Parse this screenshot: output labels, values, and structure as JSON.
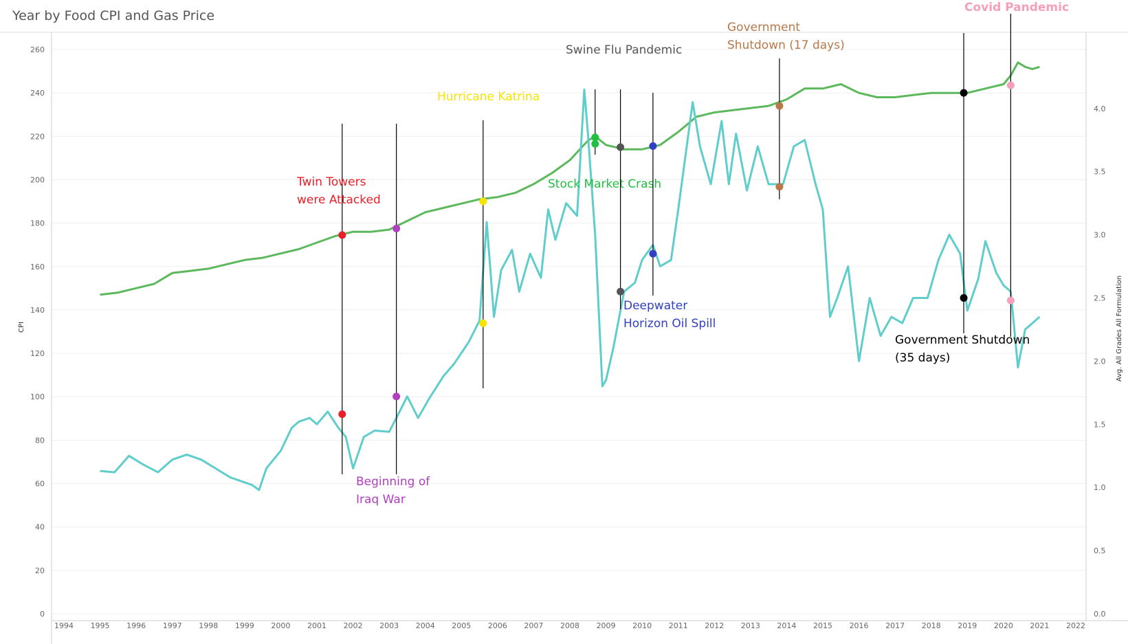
{
  "chart_data": {
    "type": "line",
    "title": "Year by Food CPI and Gas Price",
    "ylabel": "CPI",
    "y2label": "Avg. All Grades All Formulation",
    "ylim": [
      0,
      260
    ],
    "y2lim": [
      0,
      4.2
    ],
    "yticks": [
      0,
      20,
      40,
      60,
      80,
      100,
      120,
      140,
      160,
      180,
      200,
      220,
      240,
      260
    ],
    "y2ticks": [
      "0.0",
      "0.5",
      "1.0",
      "1.5",
      "2.0",
      "2.5",
      "3.0",
      "3.5",
      "4.0"
    ],
    "xticks": [
      "1994",
      "1995",
      "1996",
      "1997",
      "1998",
      "1999",
      "2000",
      "2001",
      "2002",
      "2003",
      "2004",
      "2005",
      "2006",
      "2007",
      "2008",
      "2009",
      "2010",
      "2011",
      "2012",
      "2013",
      "2014",
      "2015",
      "2016",
      "2017",
      "2018",
      "2019",
      "2020",
      "2021",
      "2022"
    ],
    "grid": true,
    "series": [
      {
        "color": "#5cb85c",
        "axis": "left",
        "x": [
          1995.0,
          1995.5,
          1996.0,
          1996.5,
          1997.0,
          1997.5,
          1998.0,
          1998.5,
          1999.0,
          1999.5,
          2000.0,
          2000.5,
          2001.0,
          2001.5,
          2002.0,
          2002.5,
          2003.0,
          2003.5,
          2004.0,
          2004.5,
          2005.0,
          2005.5,
          2006.0,
          2006.5,
          2007.0,
          2007.5,
          2008.0,
          2008.5,
          2008.7,
          2009.0,
          2009.5,
          2010.0,
          2010.5,
          2011.0,
          2011.5,
          2012.0,
          2012.5,
          2013.0,
          2013.5,
          2014.0,
          2014.5,
          2015.0,
          2015.5,
          2016.0,
          2016.5,
          2017.0,
          2017.5,
          2018.0,
          2018.5,
          2019.0,
          2019.5,
          2020.0,
          2020.2,
          2020.4,
          2020.6,
          2020.8,
          2021.0
        ],
        "values": [
          147,
          148,
          150,
          152,
          157,
          158,
          159,
          161,
          163,
          164,
          166,
          168,
          171,
          174,
          176,
          176,
          177,
          181,
          185,
          187,
          189,
          191,
          192,
          194,
          198,
          203,
          209,
          218,
          220,
          216,
          214,
          214,
          216,
          222,
          229,
          231,
          232,
          233,
          234,
          237,
          242,
          242,
          244,
          240,
          238,
          238,
          239,
          240,
          240,
          240,
          242,
          244,
          248,
          254,
          252,
          251,
          252
        ]
      },
      {
        "color": "#5fcdcb",
        "axis": "right",
        "x": [
          1995.0,
          1995.4,
          1995.8,
          1996.2,
          1996.6,
          1997.0,
          1997.4,
          1997.8,
          1998.2,
          1998.6,
          1999.0,
          1999.2,
          1999.4,
          1999.6,
          2000.0,
          2000.3,
          2000.5,
          2000.8,
          2001.0,
          2001.3,
          2001.6,
          2001.8,
          2002.0,
          2002.3,
          2002.6,
          2003.0,
          2003.2,
          2003.5,
          2003.8,
          2004.1,
          2004.5,
          2004.8,
          2005.2,
          2005.5,
          2005.7,
          2005.9,
          2006.1,
          2006.4,
          2006.6,
          2006.9,
          2007.2,
          2007.4,
          2007.6,
          2007.9,
          2008.2,
          2008.4,
          2008.5,
          2008.7,
          2008.9,
          2009.0,
          2009.2,
          2009.5,
          2009.8,
          2010.0,
          2010.3,
          2010.5,
          2010.8,
          2011.0,
          2011.4,
          2011.6,
          2011.9,
          2012.2,
          2012.4,
          2012.6,
          2012.9,
          2013.2,
          2013.5,
          2013.9,
          2014.2,
          2014.5,
          2014.8,
          2015.0,
          2015.2,
          2015.4,
          2015.7,
          2016.0,
          2016.3,
          2016.6,
          2016.9,
          2017.2,
          2017.5,
          2017.9,
          2018.2,
          2018.5,
          2018.8,
          2019.0,
          2019.3,
          2019.5,
          2019.8,
          2020.0,
          2020.2,
          2020.4,
          2020.6,
          2020.8,
          2021.0
        ],
        "values": [
          1.13,
          1.12,
          1.25,
          1.18,
          1.12,
          1.22,
          1.26,
          1.22,
          1.15,
          1.08,
          1.04,
          1.02,
          0.98,
          1.15,
          1.29,
          1.47,
          1.52,
          1.55,
          1.5,
          1.6,
          1.47,
          1.4,
          1.15,
          1.4,
          1.45,
          1.44,
          1.55,
          1.72,
          1.55,
          1.7,
          1.88,
          1.98,
          2.15,
          2.32,
          3.1,
          2.35,
          2.72,
          2.88,
          2.55,
          2.85,
          2.66,
          3.2,
          2.96,
          3.25,
          3.15,
          4.15,
          3.8,
          3.0,
          1.8,
          1.85,
          2.1,
          2.55,
          2.62,
          2.8,
          2.92,
          2.75,
          2.8,
          3.2,
          4.05,
          3.7,
          3.4,
          3.9,
          3.4,
          3.8,
          3.35,
          3.7,
          3.4,
          3.4,
          3.7,
          3.75,
          3.4,
          3.2,
          2.35,
          2.5,
          2.75,
          2.0,
          2.5,
          2.2,
          2.35,
          2.3,
          2.5,
          2.5,
          2.8,
          3.0,
          2.85,
          2.4,
          2.65,
          2.95,
          2.7,
          2.6,
          2.55,
          1.95,
          2.25,
          2.3,
          2.35
        ]
      }
    ],
    "events": [
      {
        "label_lines": [
          "Twin Towers",
          "were Attacked"
        ],
        "color": "#e8202a",
        "x": 2001.7,
        "cpi": 174.5,
        "gas": 1.58
      },
      {
        "label_lines": [
          "Beginning of",
          "Iraq War"
        ],
        "color": "#b040c0",
        "x": 2003.2,
        "cpi": 177.5,
        "gas": 1.72
      },
      {
        "label_lines": [
          "Hurricane Katrina"
        ],
        "color": "#f5e400",
        "x": 2005.6,
        "cpi": 190,
        "gas": 2.3
      },
      {
        "label_lines": [
          "Stock Market Crash"
        ],
        "color": "#20c040",
        "x": 2008.7,
        "cpi": 219.5,
        "gas": 3.72
      },
      {
        "label_lines": [
          "Swine Flu Pandemic"
        ],
        "color": "#555555",
        "x": 2009.4,
        "cpi": 215,
        "gas": 2.55
      },
      {
        "label_lines": [
          "Deepwater",
          "Horizon Oil Spill"
        ],
        "color": "#3040c0",
        "x": 2010.3,
        "cpi": 215.5,
        "gas": 2.85
      },
      {
        "label_lines": [
          "Government",
          "Shutdown (17 days)"
        ],
        "color": "#b87848",
        "x": 2013.8,
        "cpi": 234,
        "gas": 3.38
      },
      {
        "label_lines": [
          "Government Shutdown",
          "(35 days)"
        ],
        "color": "#000000",
        "x": 2018.9,
        "cpi": 240,
        "gas": 2.5
      },
      {
        "label_lines": [
          "Covid Pandemic"
        ],
        "color": "#f4a0b8",
        "x": 2020.2,
        "cpi": 243.5,
        "gas": 2.48
      }
    ]
  }
}
